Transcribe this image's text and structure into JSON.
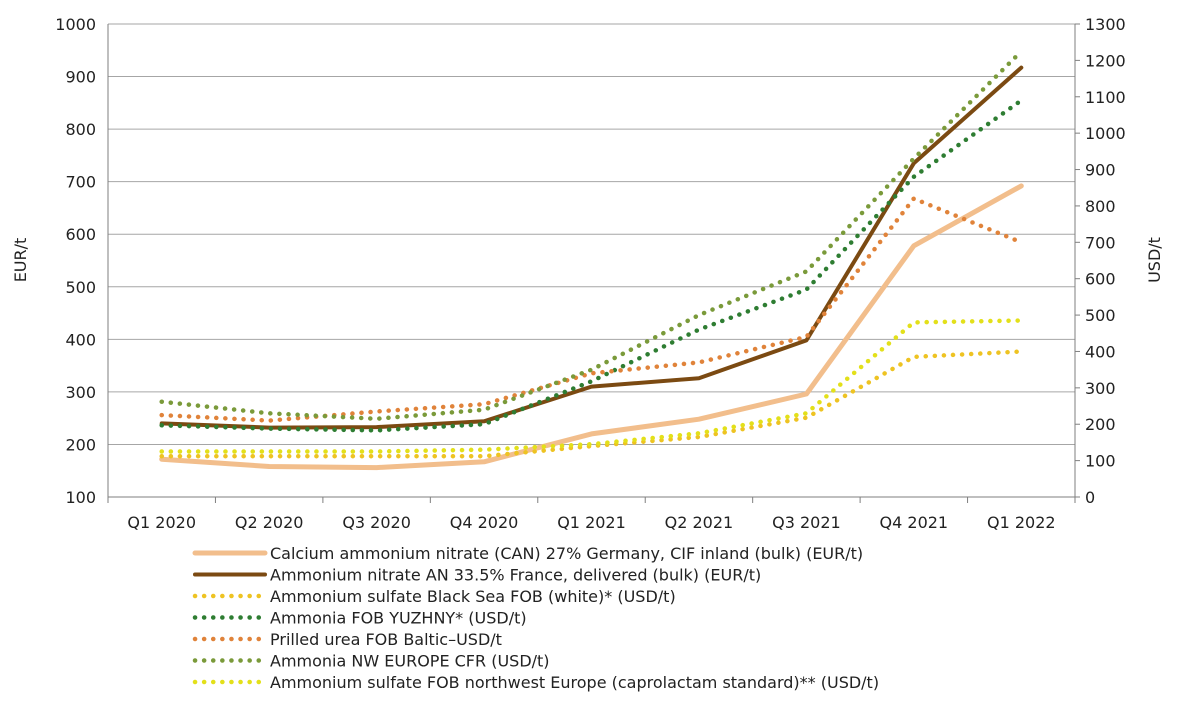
{
  "chart_data": {
    "type": "line",
    "categories": [
      "Q1 2020",
      "Q2 2020",
      "Q3 2020",
      "Q4 2020",
      "Q1 2021",
      "Q2 2021",
      "Q3 2021",
      "Q4 2021",
      "Q1 2022"
    ],
    "ylabel_left": "EUR/t",
    "ylabel_right": "USD/t",
    "ylim_left": [
      100,
      1000
    ],
    "ylim_right": [
      0,
      1300
    ],
    "yticks_left": [
      "100",
      "200",
      "300",
      "400",
      "500",
      "600",
      "700",
      "800",
      "900",
      "1000"
    ],
    "yticks_right": [
      "0",
      "100",
      "200",
      "300",
      "400",
      "500",
      "600",
      "700",
      "800",
      "900",
      "1000",
      "1100",
      "1200",
      "1300"
    ],
    "grid": true,
    "legend_position": "bottom",
    "series": [
      {
        "name": "Calcium ammonium nitrate (CAN) 27% Germany, CIF inland (bulk) (EUR/t)",
        "axis": "left",
        "style": "solid",
        "color": "#F2BE8C",
        "width": "thick",
        "values": [
          172,
          158,
          156,
          167,
          220,
          248,
          296,
          578,
          692
        ]
      },
      {
        "name": "Ammonium nitrate AN 33.5% France, delivered (bulk) (EUR/t)",
        "axis": "left",
        "style": "solid",
        "color": "#7B4A12",
        "width": "medium",
        "values": [
          240,
          232,
          233,
          244,
          310,
          326,
          398,
          735,
          917
        ]
      },
      {
        "name": "Ammonium sulfate Black Sea FOB (white)* (USD/t)",
        "axis": "right",
        "style": "dotted",
        "color": "#EEC322",
        "values": [
          112,
          112,
          112,
          112,
          140,
          165,
          218,
          385,
          400
        ]
      },
      {
        "name": "Ammonia FOB YUZHNY* (USD/t)",
        "axis": "right",
        "style": "dotted",
        "color": "#2E7D32",
        "values": [
          197,
          188,
          183,
          200,
          318,
          460,
          570,
          880,
          1090
        ]
      },
      {
        "name": "Prilled urea FOB Baltic–USD/t",
        "axis": "right",
        "style": "dotted",
        "color": "#E0833A",
        "values": [
          225,
          210,
          235,
          255,
          340,
          370,
          440,
          820,
          700
        ]
      },
      {
        "name": "Ammonia NW EUROPE CFR (USD/t)",
        "axis": "right",
        "style": "dotted",
        "color": "#7A9A3A",
        "values": [
          262,
          230,
          215,
          240,
          350,
          500,
          620,
          930,
          1225
        ]
      },
      {
        "name": "Ammonium sulfate FOB northwest Europe (caprolactam standard)** (USD/t)",
        "axis": "right",
        "style": "dotted",
        "color": "#E3E01A",
        "values": [
          125,
          125,
          125,
          130,
          145,
          175,
          230,
          480,
          485
        ]
      }
    ]
  }
}
